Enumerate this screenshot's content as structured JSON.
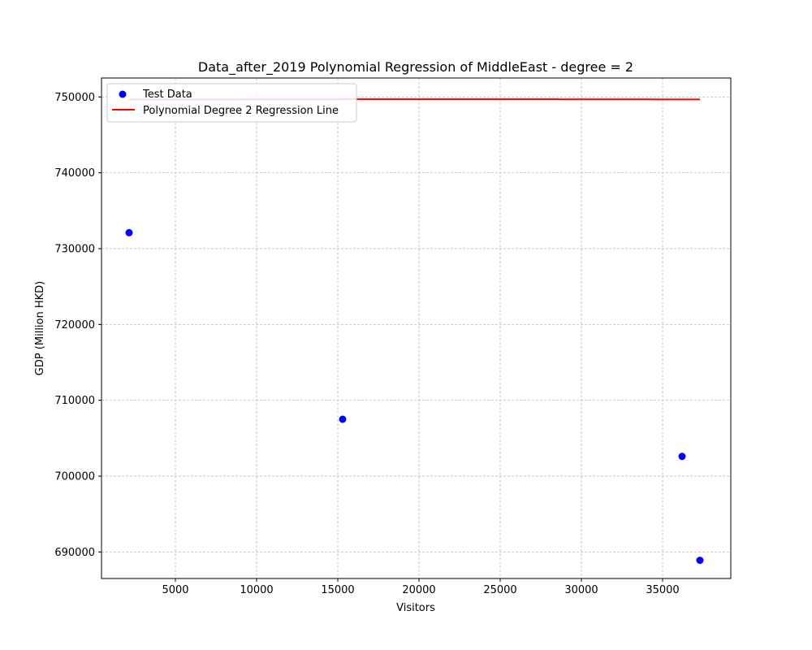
{
  "chart_data": {
    "type": "scatter",
    "title": "Data_after_2019 Polynomial Regression of MiddleEast - degree = 2",
    "xlabel": "Visitors",
    "ylabel": "GDP (Million HKD)",
    "xlim": [
      450,
      39200
    ],
    "ylim": [
      686500,
      752500
    ],
    "xticks": [
      5000,
      10000,
      15000,
      20000,
      25000,
      30000,
      35000
    ],
    "yticks": [
      690000,
      700000,
      710000,
      720000,
      730000,
      740000,
      750000
    ],
    "grid": true,
    "legend_position": "top-left",
    "series": [
      {
        "name": "Test Data",
        "kind": "scatter",
        "color": "#0000ff",
        "points": [
          {
            "x": 2150,
            "y": 732100
          },
          {
            "x": 15300,
            "y": 707500
          },
          {
            "x": 36200,
            "y": 702600
          },
          {
            "x": 37300,
            "y": 688900
          }
        ]
      },
      {
        "name": "Polynomial Degree 2 Regression Line",
        "kind": "line",
        "color": "#ff0000",
        "degree": 2,
        "x_range": [
          2150,
          37300
        ],
        "vertex": {
          "x": 21850,
          "y": 749700
        },
        "curvature": -1.196e-07
      }
    ]
  }
}
